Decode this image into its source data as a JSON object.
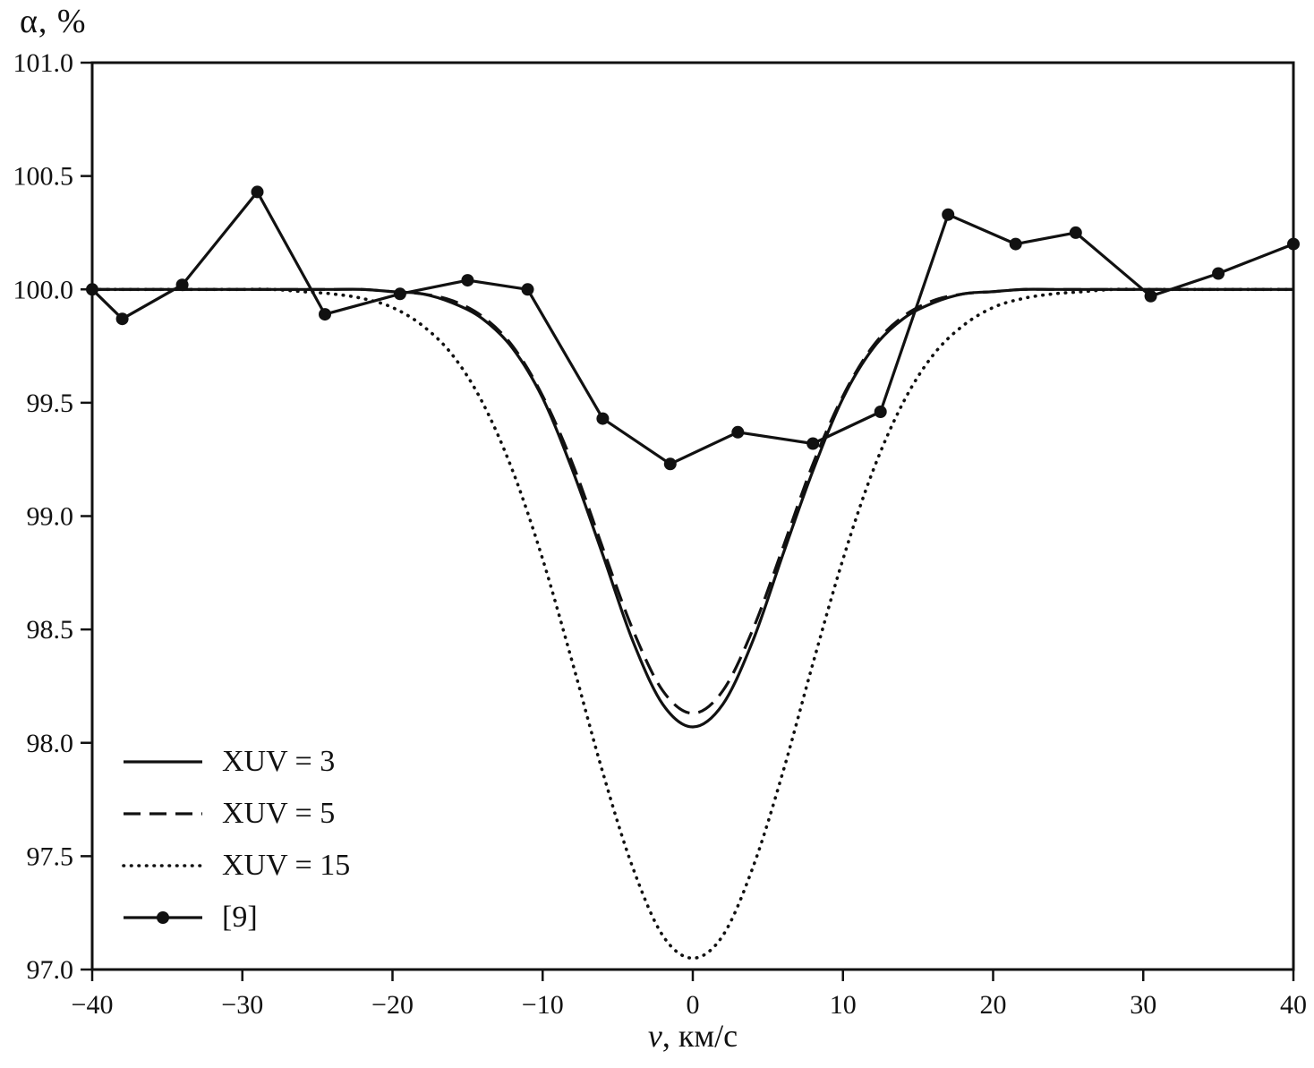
{
  "figure": {
    "y_axis_title": "α, %",
    "x_axis_title_var": "v",
    "x_axis_title_rest": ", км/с"
  },
  "chart_data": {
    "type": "line",
    "title": "",
    "xlabel": "v, км/с",
    "ylabel": "α, %",
    "xlim": [
      -40,
      40
    ],
    "ylim": [
      97.0,
      101.0
    ],
    "grid": false,
    "legend_position": "lower left",
    "x_ticks": [
      -40,
      -30,
      -20,
      -10,
      0,
      10,
      20,
      30,
      40
    ],
    "x_tick_labels": [
      "−40",
      "−30",
      "−20",
      "−10",
      "0",
      "10",
      "20",
      "30",
      "40"
    ],
    "y_ticks": [
      97.0,
      97.5,
      98.0,
      98.5,
      99.0,
      99.5,
      100.0,
      100.5,
      101.0
    ],
    "y_tick_labels": [
      "97.0",
      "97.5",
      "98.0",
      "98.5",
      "99.0",
      "99.5",
      "100.0",
      "100.5",
      "101.0"
    ],
    "series": [
      {
        "name": "XUV = 3",
        "style": "solid",
        "x": [
          -40,
          -38,
          -36,
          -34,
          -32,
          -30,
          -28,
          -26,
          -24,
          -22,
          -20,
          -18,
          -16,
          -14,
          -12,
          -10,
          -8,
          -6,
          -4,
          -2,
          0,
          2,
          4,
          6,
          8,
          10,
          12,
          14,
          16,
          18,
          20,
          22,
          24,
          26,
          28,
          30,
          32,
          34,
          36,
          38,
          40
        ],
        "y": [
          100.0,
          100.0,
          100.0,
          100.0,
          100.0,
          100.0,
          100.0,
          100.0,
          100.0,
          100.0,
          99.99,
          99.98,
          99.94,
          99.87,
          99.74,
          99.52,
          99.2,
          98.83,
          98.45,
          98.17,
          98.07,
          98.17,
          98.45,
          98.83,
          99.2,
          99.52,
          99.74,
          99.87,
          99.94,
          99.98,
          99.99,
          100.0,
          100.0,
          100.0,
          100.0,
          100.0,
          100.0,
          100.0,
          100.0,
          100.0,
          100.0
        ]
      },
      {
        "name": "XUV = 5",
        "style": "dashed",
        "x": [
          -40,
          -38,
          -36,
          -34,
          -32,
          -30,
          -28,
          -26,
          -24,
          -22,
          -20,
          -18,
          -16,
          -14,
          -12,
          -10,
          -8,
          -6,
          -4,
          -2,
          0,
          2,
          4,
          6,
          8,
          10,
          12,
          14,
          16,
          18,
          20,
          22,
          24,
          26,
          28,
          30,
          32,
          34,
          36,
          38,
          40
        ],
        "y": [
          100.0,
          100.0,
          100.0,
          100.0,
          100.0,
          100.0,
          100.0,
          100.0,
          100.0,
          100.0,
          99.99,
          99.98,
          99.95,
          99.88,
          99.75,
          99.53,
          99.23,
          98.86,
          98.5,
          98.23,
          98.13,
          98.23,
          98.5,
          98.86,
          99.23,
          99.53,
          99.75,
          99.88,
          99.95,
          99.98,
          99.99,
          100.0,
          100.0,
          100.0,
          100.0,
          100.0,
          100.0,
          100.0,
          100.0,
          100.0,
          100.0
        ]
      },
      {
        "name": "XUV = 15",
        "style": "dotted",
        "x": [
          -40,
          -38,
          -36,
          -34,
          -32,
          -30,
          -28,
          -26,
          -24,
          -22,
          -20,
          -18,
          -16,
          -14,
          -12,
          -10,
          -8,
          -6,
          -4,
          -2,
          0,
          2,
          4,
          6,
          8,
          10,
          12,
          14,
          16,
          18,
          20,
          22,
          24,
          26,
          28,
          30,
          32,
          34,
          36,
          38,
          40
        ],
        "y": [
          100.0,
          100.0,
          100.0,
          100.0,
          100.0,
          100.0,
          100.0,
          99.99,
          99.98,
          99.96,
          99.92,
          99.84,
          99.71,
          99.5,
          99.2,
          98.81,
          98.35,
          97.87,
          97.45,
          97.15,
          97.05,
          97.15,
          97.45,
          97.87,
          98.35,
          98.81,
          99.2,
          99.5,
          99.71,
          99.84,
          99.92,
          99.96,
          99.98,
          99.99,
          100.0,
          100.0,
          100.0,
          100.0,
          100.0,
          100.0,
          100.0
        ]
      },
      {
        "name": "[9]",
        "style": "marker-line",
        "x": [
          -40,
          -38,
          -34,
          -29,
          -24.5,
          -19.5,
          -15,
          -11,
          -6,
          -1.5,
          3,
          8,
          12.5,
          17,
          21.5,
          25.5,
          30.5,
          35,
          40
        ],
        "y": [
          100.0,
          99.87,
          100.02,
          100.43,
          99.89,
          99.98,
          100.04,
          100.0,
          99.43,
          99.23,
          99.37,
          99.32,
          99.46,
          100.33,
          100.2,
          100.25,
          99.97,
          100.07,
          100.2
        ]
      }
    ]
  }
}
